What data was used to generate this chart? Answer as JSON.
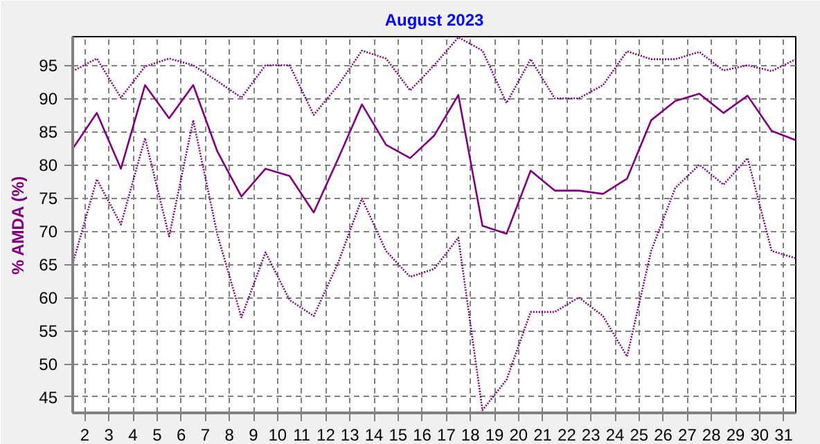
{
  "chart_data": {
    "type": "line",
    "title": "August 2023",
    "ylabel": "% AMDA (%)",
    "x": [
      1.5,
      2.5,
      3.5,
      4.5,
      5.5,
      6.5,
      7.5,
      8.5,
      9.5,
      10.5,
      11.5,
      12.5,
      13.5,
      14.5,
      15.5,
      16.5,
      17.5,
      18.5,
      19.5,
      20.5,
      21.5,
      22.5,
      23.5,
      24.5,
      25.5,
      26.5,
      27.5,
      28.5,
      29.5,
      30.5,
      31.5
    ],
    "xlim": [
      1.5,
      31.5
    ],
    "xticks": [
      2,
      3,
      4,
      5,
      6,
      7,
      8,
      9,
      10,
      11,
      12,
      13,
      14,
      15,
      16,
      17,
      18,
      19,
      20,
      21,
      22,
      23,
      24,
      25,
      26,
      27,
      28,
      29,
      30,
      31
    ],
    "ylim": [
      42.6,
      99.3
    ],
    "yticks": [
      45,
      50,
      55,
      60,
      65,
      70,
      75,
      80,
      85,
      90,
      95
    ],
    "grid": true,
    "series": [
      {
        "color": "#800080",
        "line_style": "dotted",
        "values": [
          94.1,
          96.0,
          90.1,
          94.8,
          96.0,
          95.0,
          92.6,
          90.1,
          95.0,
          95.0,
          87.5,
          91.9,
          97.2,
          96.0,
          91.2,
          95.0,
          99.2,
          97.2,
          89.3,
          95.9,
          90.0,
          90.0,
          92.0,
          97.1,
          95.9,
          95.9,
          97.0,
          94.2,
          95.0,
          94.1,
          95.9
        ]
      },
      {
        "color": "#800080",
        "line_style": "solid",
        "values": [
          82.4,
          87.8,
          79.4,
          92.0,
          87.0,
          92.0,
          82.0,
          75.2,
          79.4,
          78.3,
          72.8,
          80.8,
          89.1,
          83.0,
          81.0,
          84.4,
          90.5,
          70.8,
          69.6,
          79.1,
          76.1,
          76.1,
          75.6,
          77.9,
          86.7,
          89.6,
          90.7,
          87.8,
          90.4,
          85.1,
          83.7
        ]
      },
      {
        "color": "#800080",
        "line_style": "dotted",
        "values": [
          65.1,
          77.8,
          71.0,
          84.0,
          69.2,
          86.7,
          69.5,
          57.0,
          66.8,
          59.6,
          57.2,
          65.1,
          74.9,
          67.0,
          63.1,
          64.3,
          69.0,
          43.0,
          47.6,
          57.8,
          57.8,
          60.0,
          57.2,
          51.1,
          67.0,
          76.5,
          80.0,
          77.0,
          81.0,
          67.0,
          65.9
        ]
      }
    ]
  }
}
